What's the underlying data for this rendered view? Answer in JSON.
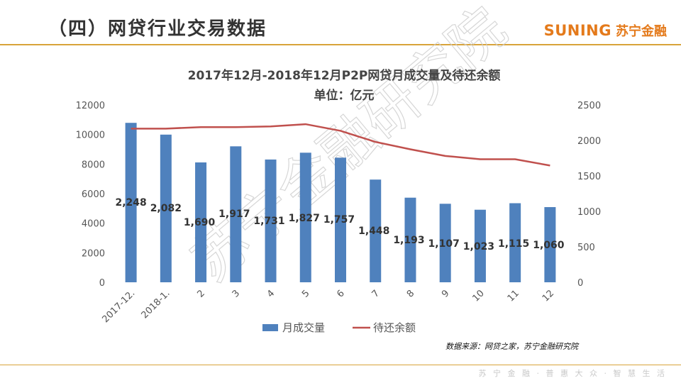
{
  "header": {
    "title": "（四）网贷行业交易数据",
    "brand_en": "SUNING",
    "brand_cn": "苏宁金融"
  },
  "footer": {
    "source": "数据来源：网贷之家，苏宁金融研究院",
    "slogan": "苏 宁 金 融 · 普 惠 大 众 · 智 慧 生 活"
  },
  "watermark": "苏宁金融研究院",
  "colors": {
    "bar": "#4f81bd",
    "line": "#c0504d",
    "accent": "#e47a1b",
    "rule": "#d8a33a"
  },
  "chart_data": {
    "type": "bar",
    "title": "2017年12月-2018年12月P2P网贷月成交量及待还余额",
    "subtitle": "单位：亿元",
    "categories": [
      "2017-12.",
      "2018-1.",
      "2",
      "3",
      "4",
      "5",
      "6",
      "7",
      "8",
      "9",
      "10",
      "11",
      "12"
    ],
    "series": [
      {
        "name": "月成交量",
        "type": "bar",
        "axis": "right",
        "values": [
          2248,
          2082,
          1690,
          1917,
          1731,
          1827,
          1757,
          1448,
          1193,
          1107,
          1023,
          1115,
          1060
        ],
        "data_labels": [
          "2,248",
          "2,082",
          "1,690",
          "1,917",
          "1,731",
          "1,827",
          "1,757",
          "1,448",
          "1,193",
          "1,107",
          "1,023",
          "1,115",
          "1,060"
        ]
      },
      {
        "name": "待还余额",
        "type": "line",
        "axis": "left",
        "values": [
          10400,
          10400,
          10500,
          10500,
          10550,
          10700,
          10250,
          9500,
          9000,
          8550,
          8330,
          8330,
          7900
        ]
      }
    ],
    "y_left": {
      "ticks": [
        "0",
        "2000",
        "4000",
        "6000",
        "8000",
        "10000",
        "12000"
      ],
      "ylim": [
        0,
        12000
      ]
    },
    "y_right": {
      "ticks": [
        "0",
        "500",
        "1000",
        "1500",
        "2000",
        "2500"
      ],
      "ylim": [
        0,
        2500
      ]
    },
    "legend": "bottom",
    "grid": false
  }
}
